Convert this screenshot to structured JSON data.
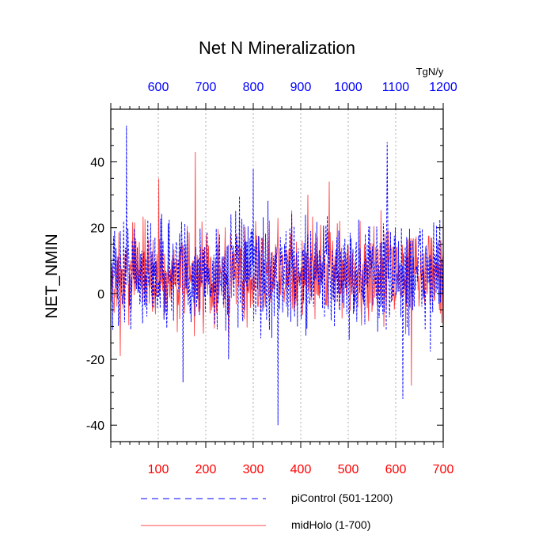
{
  "chart_data": {
    "type": "line",
    "title": "Net N Mineralization",
    "units": "TgN/y",
    "ylabel": "NET_NMIN",
    "ylim": [
      -45,
      56
    ],
    "yticks": [
      -40,
      -20,
      0,
      20,
      40
    ],
    "bottom_axis": {
      "range": [
        0,
        700
      ],
      "ticks": [
        100,
        200,
        300,
        400,
        500,
        600,
        700
      ],
      "color": "#ff0000"
    },
    "top_axis": {
      "range": [
        500,
        1200
      ],
      "ticks": [
        600,
        700,
        800,
        900,
        1000,
        1100,
        1200
      ],
      "color": "#0000ff"
    },
    "grid": "vertical-dotted",
    "series": [
      {
        "name": "piControl (501-1200)",
        "color": "#0000ff",
        "dash": "dashed",
        "amplitude": 14,
        "spikes": [
          [
            33,
            51
          ],
          [
            152,
            -27
          ],
          [
            248,
            -20
          ],
          [
            352,
            -40
          ],
          [
            582,
            46
          ],
          [
            615,
            -32
          ],
          [
            300,
            38
          ]
        ]
      },
      {
        "name": "midHolo (1-700)",
        "color": "#ff0000",
        "dash": "solid",
        "amplitude": 12,
        "spikes": [
          [
            178,
            43
          ],
          [
            101,
            35
          ],
          [
            20,
            -19
          ],
          [
            460,
            34
          ],
          [
            633,
            -28
          ],
          [
            415,
            30
          ]
        ]
      }
    ],
    "legend": {
      "position": "bottom"
    }
  }
}
